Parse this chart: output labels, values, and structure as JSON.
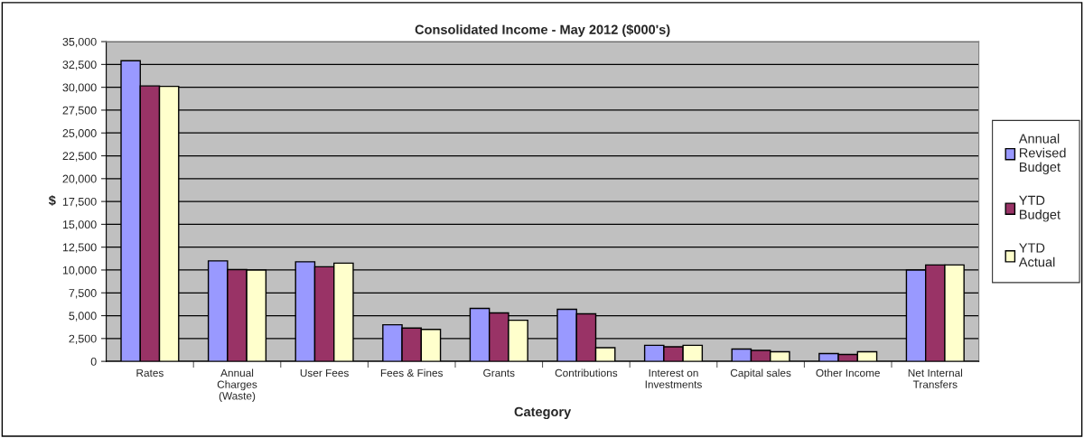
{
  "chart_data": {
    "type": "bar",
    "title": "Consolidated Income - May 2012 ($000's)",
    "xlabel": "Category",
    "ylabel": "$",
    "categories": [
      "Rates",
      "Annual\nCharges\n(Waste)",
      "User Fees",
      "Fees & Fines",
      "Grants",
      "Contributions",
      "Interest on\nInvestments",
      "Capital sales",
      "Other Income",
      "Net Internal\nTransfers"
    ],
    "series": [
      {
        "name": "Annual\nRevised\nBudget",
        "color": "#9999ff",
        "values": [
          32900,
          11000,
          10900,
          4000,
          5800,
          5700,
          1750,
          1350,
          850,
          10000
        ]
      },
      {
        "name": "YTD\nBudget",
        "color": "#993366",
        "values": [
          30150,
          10050,
          10350,
          3650,
          5300,
          5200,
          1600,
          1200,
          750,
          10550
        ]
      },
      {
        "name": "YTD\nActual",
        "color": "#ffffcc",
        "values": [
          30100,
          10000,
          10750,
          3500,
          4500,
          1500,
          1750,
          1050,
          1050,
          10550
        ]
      }
    ],
    "ylim": [
      0,
      35000
    ],
    "yticks": [
      0,
      {
        "value": 2500,
        "label": "2,500"
      },
      {
        "value": 5000,
        "label": "5,000"
      },
      {
        "value": 7500,
        "label": "7,500"
      },
      {
        "value": 10000,
        "label": "10,000"
      },
      {
        "value": 12500,
        "label": "12,500"
      },
      {
        "value": 15000,
        "label": "15,000"
      },
      {
        "value": 17500,
        "label": "17,500"
      },
      {
        "value": 20000,
        "label": "20,000"
      },
      {
        "value": 22500,
        "label": "22,500"
      },
      {
        "value": 25000,
        "label": "25,000"
      },
      {
        "value": 27500,
        "label": "27,500"
      },
      {
        "value": 30000,
        "label": "30,000"
      },
      {
        "value": 32500,
        "label": "32,500"
      },
      {
        "value": 35000,
        "label": "35,000"
      }
    ],
    "grid": "y",
    "legend": "right"
  }
}
